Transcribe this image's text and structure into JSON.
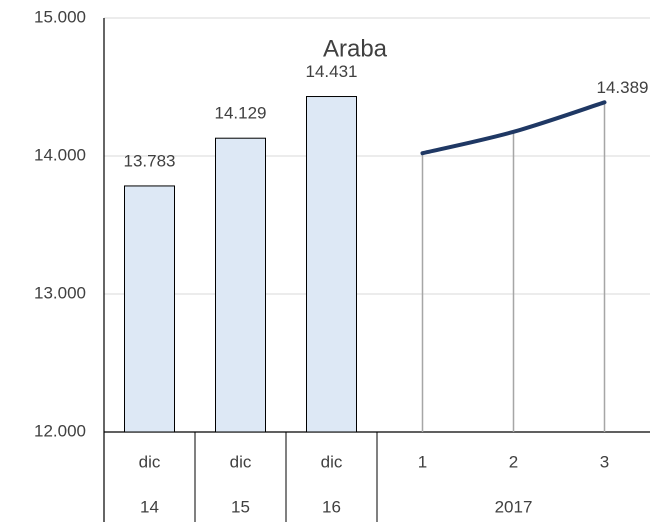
{
  "chart_data": {
    "type": "combo",
    "title": "Araba",
    "groups": [
      {
        "label": "14",
        "categories": [
          "dic"
        ]
      },
      {
        "label": "15",
        "categories": [
          "dic"
        ]
      },
      {
        "label": "16",
        "categories": [
          "dic"
        ]
      },
      {
        "label": "2017",
        "categories": [
          "1",
          "2",
          "3"
        ]
      }
    ],
    "series": [
      {
        "type": "bar",
        "color": "#dde8f5",
        "edge": "#000000",
        "values": [
          13783,
          14129,
          14431,
          null,
          null,
          null
        ],
        "value_labels": [
          "13.783",
          "14.129",
          "14.431",
          null,
          null,
          null
        ]
      },
      {
        "type": "line",
        "color": "#1f3864",
        "values": [
          null,
          null,
          null,
          14020,
          14175,
          14389
        ],
        "value_labels": [
          null,
          null,
          null,
          null,
          null,
          "14.389"
        ]
      }
    ],
    "ylim": [
      12000,
      15000
    ],
    "yticks": [
      {
        "value": 12000,
        "label": "12.000"
      },
      {
        "value": 13000,
        "label": "13.000"
      },
      {
        "value": 14000,
        "label": "14.000"
      },
      {
        "value": 15000,
        "label": "15.000"
      }
    ],
    "grid": true
  }
}
